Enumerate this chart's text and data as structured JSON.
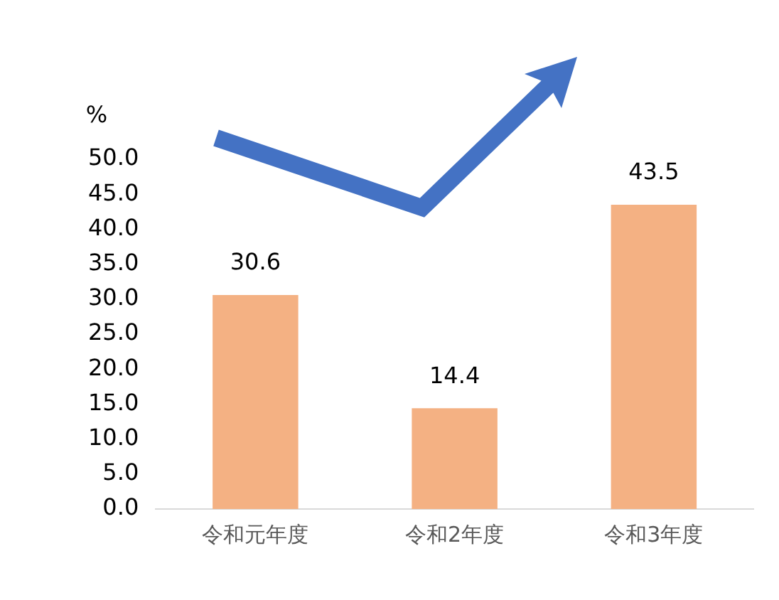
{
  "chart_data": {
    "type": "bar",
    "ylabel": "%",
    "categories": [
      "令和元年度",
      "令和2年度",
      "令和3年度"
    ],
    "values": [
      30.6,
      14.4,
      43.5
    ],
    "color": "#f4b183",
    "data_labels": true,
    "grid": false,
    "legend": false,
    "ylim": [
      0,
      50
    ],
    "yticks": [
      {
        "value": 0,
        "label": "0.0"
      },
      {
        "value": 5,
        "label": "5.0"
      },
      {
        "value": 10,
        "label": "10.0"
      },
      {
        "value": 15,
        "label": "15.0"
      },
      {
        "value": 20,
        "label": "20.0"
      },
      {
        "value": 25,
        "label": "25.0"
      },
      {
        "value": 30,
        "label": "30.0"
      },
      {
        "value": 35,
        "label": "35.0"
      },
      {
        "value": 40,
        "label": "40.0"
      },
      {
        "value": 45,
        "label": "45.0"
      },
      {
        "value": 50,
        "label": "50.0"
      }
    ]
  }
}
